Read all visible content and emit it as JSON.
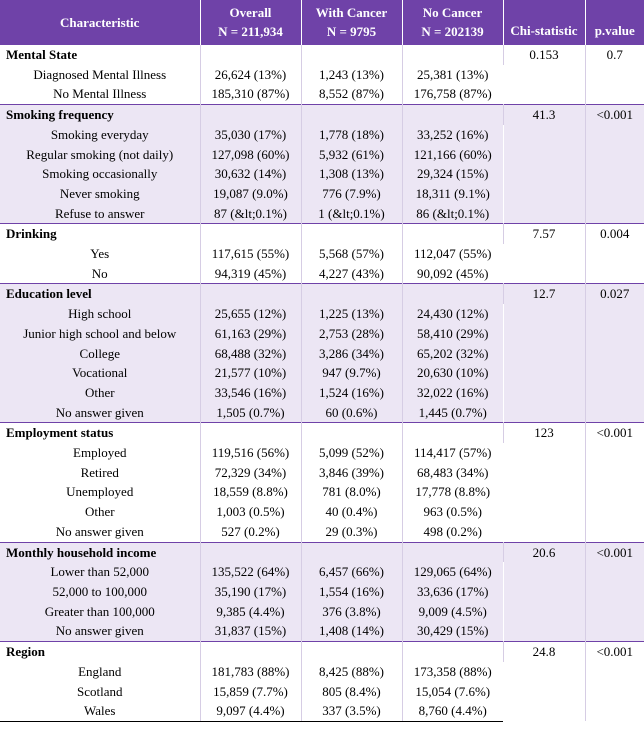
{
  "headers": {
    "characteristic": "Characteristic",
    "overall": "Overall",
    "overall_n": "N = 211,934",
    "with_cancer": "With Cancer",
    "with_cancer_n": "N = 9795",
    "no_cancer": "No Cancer",
    "no_cancer_n": "N = 202139",
    "chi": "Chi-statistic",
    "p": "p.value"
  },
  "colors": {
    "header_bg": "#6f42a8",
    "shaded_bg": "#ece6f4"
  },
  "sections": [
    {
      "title": "Mental State",
      "chi": "0.153",
      "p": "0.7",
      "shaded": false,
      "rows": [
        {
          "label": "Diagnosed Mental Illness",
          "overall": "26,624 (13%)",
          "with": "1,243 (13%)",
          "without": "25,381 (13%)"
        },
        {
          "label": "No Mental Illness",
          "overall": "185,310 (87%)",
          "with": "8,552 (87%)",
          "without": "176,758 (87%)"
        }
      ]
    },
    {
      "title": "Smoking frequency",
      "chi": "41.3",
      "p": "<0.001",
      "shaded": true,
      "rows": [
        {
          "label": "Smoking everyday",
          "overall": "35,030 (17%)",
          "with": "1,778 (18%)",
          "without": "33,252 (16%)"
        },
        {
          "label": "Regular smoking (not daily)",
          "overall": "127,098 (60%)",
          "with": "5,932 (61%)",
          "without": "121,166 (60%)"
        },
        {
          "label": "Smoking occasionally",
          "overall": "30,632 (14%)",
          "with": "1,308 (13%)",
          "without": "29,324 (15%)"
        },
        {
          "label": "Never smoking",
          "overall": "19,087 (9.0%)",
          "with": "776 (7.9%)",
          "without": "18,311 (9.1%)"
        },
        {
          "label": "Refuse to answer",
          "overall": "87 (&lt;0.1%)",
          "with": "1 (&lt;0.1%)",
          "without": "86 (&lt;0.1%)"
        }
      ]
    },
    {
      "title": "Drinking",
      "chi": "7.57",
      "p": "0.004",
      "shaded": false,
      "rows": [
        {
          "label": "Yes",
          "overall": "117,615 (55%)",
          "with": "5,568 (57%)",
          "without": "112,047 (55%)"
        },
        {
          "label": "No",
          "overall": "94,319 (45%)",
          "with": "4,227 (43%)",
          "without": "90,092 (45%)"
        }
      ]
    },
    {
      "title": "Education level",
      "chi": "12.7",
      "p": "0.027",
      "shaded": true,
      "rows": [
        {
          "label": "High school",
          "overall": "25,655 (12%)",
          "with": "1,225 (13%)",
          "without": "24,430 (12%)"
        },
        {
          "label": "Junior high school and below",
          "overall": "61,163 (29%)",
          "with": "2,753 (28%)",
          "without": "58,410 (29%)"
        },
        {
          "label": "College",
          "overall": "68,488 (32%)",
          "with": "3,286 (34%)",
          "without": "65,202 (32%)"
        },
        {
          "label": "Vocational",
          "overall": "21,577 (10%)",
          "with": "947 (9.7%)",
          "without": "20,630 (10%)"
        },
        {
          "label": "Other",
          "overall": "33,546 (16%)",
          "with": "1,524 (16%)",
          "without": "32,022 (16%)"
        },
        {
          "label": "No answer given",
          "overall": "1,505 (0.7%)",
          "with": "60 (0.6%)",
          "without": "1,445 (0.7%)"
        }
      ]
    },
    {
      "title": "Employment status",
      "chi": "123",
      "p": "<0.001",
      "shaded": false,
      "rows": [
        {
          "label": "Employed",
          "overall": "119,516 (56%)",
          "with": "5,099 (52%)",
          "without": "114,417 (57%)"
        },
        {
          "label": "Retired",
          "overall": "72,329 (34%)",
          "with": "3,846 (39%)",
          "without": "68,483 (34%)"
        },
        {
          "label": "Unemployed",
          "overall": "18,559 (8.8%)",
          "with": "781 (8.0%)",
          "without": "17,778 (8.8%)"
        },
        {
          "label": "Other",
          "overall": "1,003 (0.5%)",
          "with": "40 (0.4%)",
          "without": "963 (0.5%)"
        },
        {
          "label": "No answer given",
          "overall": "527 (0.2%)",
          "with": "29 (0.3%)",
          "without": "498 (0.2%)"
        }
      ]
    },
    {
      "title": "Monthly household income",
      "chi": "20.6",
      "p": "<0.001",
      "shaded": true,
      "rows": [
        {
          "label": "Lower than 52,000",
          "overall": "135,522 (64%)",
          "with": "6,457 (66%)",
          "without": "129,065 (64%)"
        },
        {
          "label": "52,000 to 100,000",
          "overall": "35,190 (17%)",
          "with": "1,554 (16%)",
          "without": "33,636 (17%)"
        },
        {
          "label": "Greater than 100,000",
          "overall": "9,385 (4.4%)",
          "with": "376 (3.8%)",
          "without": "9,009 (4.5%)"
        },
        {
          "label": "No answer given",
          "overall": "31,837 (15%)",
          "with": "1,408 (14%)",
          "without": "30,429 (15%)"
        }
      ]
    },
    {
      "title": "Region",
      "chi": "24.8",
      "p": "<0.001",
      "shaded": false,
      "rows": [
        {
          "label": "England",
          "overall": "181,783 (88%)",
          "with": "8,425 (88%)",
          "without": "173,358 (88%)"
        },
        {
          "label": "Scotland",
          "overall": "15,859 (7.7%)",
          "with": "805 (8.4%)",
          "without": "15,054 (7.6%)"
        },
        {
          "label": "Wales",
          "overall": "9,097 (4.4%)",
          "with": "337 (3.5%)",
          "without": "8,760 (4.4%)"
        }
      ]
    }
  ]
}
